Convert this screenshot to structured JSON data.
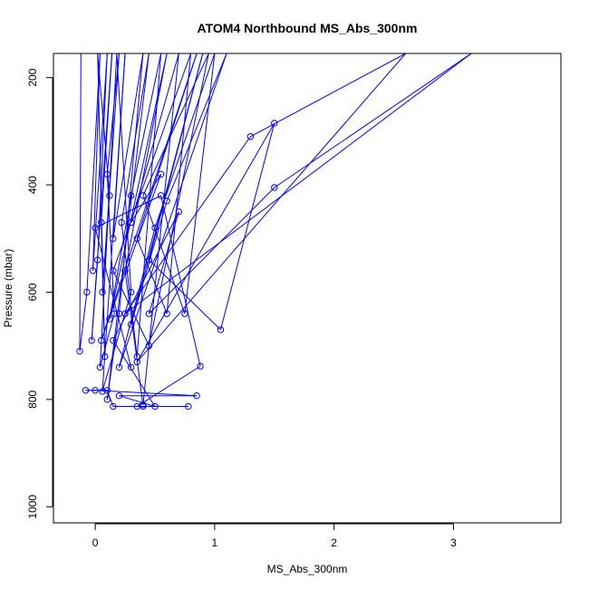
{
  "chart_data": {
    "type": "line",
    "title": "ATOM4 Northbound MS_Abs_300nm",
    "xlabel": "MS_Abs_300nm",
    "ylabel": "Pressure (mbar)",
    "xlim": [
      -0.35,
      3.9
    ],
    "ylim": [
      1030,
      155
    ],
    "y_reversed": true,
    "x_ticks": [
      0,
      1,
      2,
      3
    ],
    "x_tick_labels": [
      "0",
      "1",
      "2",
      "3"
    ],
    "y_ticks": [
      200,
      400,
      600,
      800,
      1000
    ],
    "y_tick_labels": [
      "200",
      "400",
      "600",
      "800",
      "1000"
    ],
    "grid": false,
    "legend": "none",
    "marker": "open-circle",
    "color": "#0000ff",
    "series": [
      {
        "points": [
          [
            -0.12,
            155
          ],
          [
            -0.13,
            710
          ],
          [
            -0.07,
            600
          ],
          [
            0.04,
            155
          ],
          [
            -0.02,
            560
          ],
          [
            0.1,
            155
          ],
          [
            0.02,
            540
          ],
          [
            -0.03,
            690
          ],
          [
            0.14,
            155
          ],
          [
            0.05,
            470
          ],
          [
            0.08,
            720
          ],
          [
            0.02,
            155
          ],
          [
            0.12,
            420
          ],
          [
            0.06,
            600
          ],
          [
            0.2,
            155
          ],
          [
            0.1,
            380
          ],
          [
            0.16,
            640
          ],
          [
            0.04,
            740
          ],
          [
            0.18,
            155
          ],
          [
            0.3,
            600
          ],
          [
            0.06,
            785
          ],
          [
            0.25,
            155
          ],
          [
            0.15,
            500
          ],
          [
            0.4,
            155
          ],
          [
            0.2,
            640
          ],
          [
            0.1,
            800
          ],
          [
            0.45,
            155
          ],
          [
            0.22,
            470
          ],
          [
            0.35,
            720
          ],
          [
            0.55,
            155
          ],
          [
            0.3,
            420
          ],
          [
            0.12,
            650
          ],
          [
            0.6,
            155
          ],
          [
            0.25,
            560
          ],
          [
            0.4,
            810
          ],
          [
            0.7,
            155
          ],
          [
            0.3,
            470
          ],
          [
            0.55,
            380
          ],
          [
            0.05,
            690
          ],
          [
            0.85,
            155
          ],
          [
            0.35,
            500
          ],
          [
            0.6,
            640
          ],
          [
            0.8,
            155
          ],
          [
            0.15,
            560
          ],
          [
            0.45,
            700
          ],
          [
            0.95,
            155
          ],
          [
            0.4,
            420
          ],
          [
            0.75,
            640
          ],
          [
            1.0,
            155
          ],
          [
            0.5,
            480
          ],
          [
            0.2,
            740
          ],
          [
            1.1,
            155
          ],
          [
            0.6,
            430
          ],
          [
            0.3,
            660
          ],
          [
            0.9,
            155
          ],
          [
            0.45,
            540
          ],
          [
            1.05,
            670
          ],
          [
            1.5,
            285
          ],
          [
            0.35,
            730
          ],
          [
            2.6,
            155
          ],
          [
            1.3,
            310
          ],
          [
            0.25,
            640
          ],
          [
            3.15,
            155
          ],
          [
            1.5,
            405
          ],
          [
            0.45,
            640
          ],
          [
            0.7,
            450
          ],
          [
            0.15,
            690
          ],
          [
            0.5,
            813
          ],
          [
            0.2,
            793
          ],
          [
            0.85,
            793
          ],
          [
            0.0,
            783
          ],
          [
            -0.08,
            783
          ],
          [
            0.1,
            783
          ],
          [
            0.15,
            813
          ],
          [
            0.4,
            813
          ],
          [
            0.78,
            813
          ],
          [
            0.35,
            813
          ],
          [
            0.88,
            738
          ],
          [
            0.55,
            420
          ],
          [
            0.0,
            480
          ],
          [
            0.3,
            740
          ]
        ]
      }
    ]
  }
}
